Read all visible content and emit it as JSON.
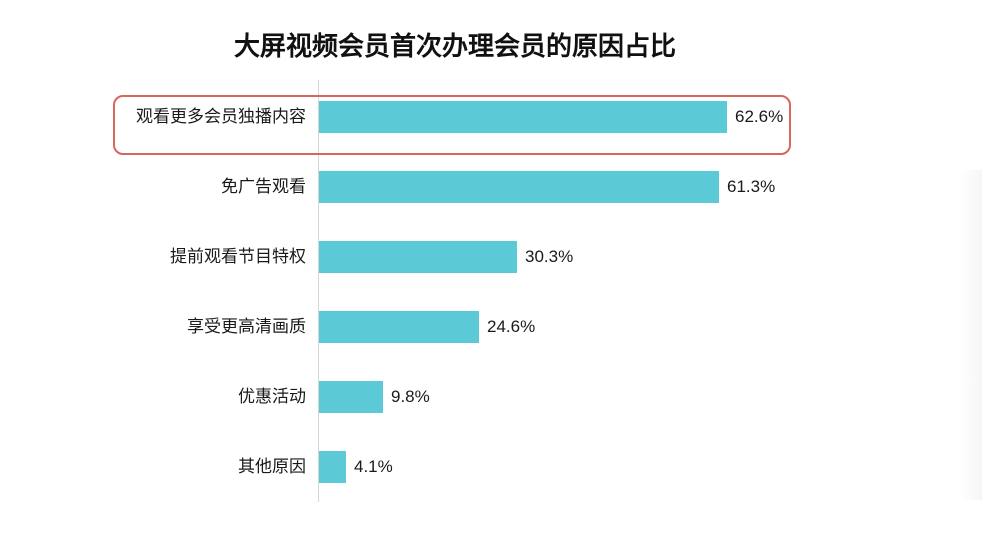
{
  "chart": {
    "title": "大屏视频会员首次办理会员的原因占比",
    "bar_color": "#5bc9d6",
    "highlight_color": "#d9665c",
    "highlighted_index": 0,
    "rows": [
      {
        "label": "观看更多会员独播内容",
        "value": 62.6,
        "value_text": "62.6%"
      },
      {
        "label": "免广告观看",
        "value": 61.3,
        "value_text": "61.3%"
      },
      {
        "label": "提前观看节目特权",
        "value": 30.3,
        "value_text": "30.3%"
      },
      {
        "label": "享受更高清画质",
        "value": 24.6,
        "value_text": "24.6%"
      },
      {
        "label": "优惠活动",
        "value": 9.8,
        "value_text": "9.8%"
      },
      {
        "label": "其他原因",
        "value": 4.1,
        "value_text": "4.1%"
      }
    ]
  },
  "chart_data": {
    "type": "bar",
    "orientation": "horizontal",
    "title": "大屏视频会员首次办理会员的原因占比",
    "categories": [
      "观看更多会员独播内容",
      "免广告观看",
      "提前观看节目特权",
      "享受更高清画质",
      "优惠活动",
      "其他原因"
    ],
    "values": [
      62.6,
      61.3,
      30.3,
      24.6,
      9.8,
      4.1
    ],
    "unit": "%",
    "xlabel": "",
    "ylabel": "",
    "grid": false,
    "legend": null,
    "data_labels": true,
    "annotations": [
      "Red rounded box highlighting 观看更多会员独播内容 (62.6%)"
    ]
  }
}
